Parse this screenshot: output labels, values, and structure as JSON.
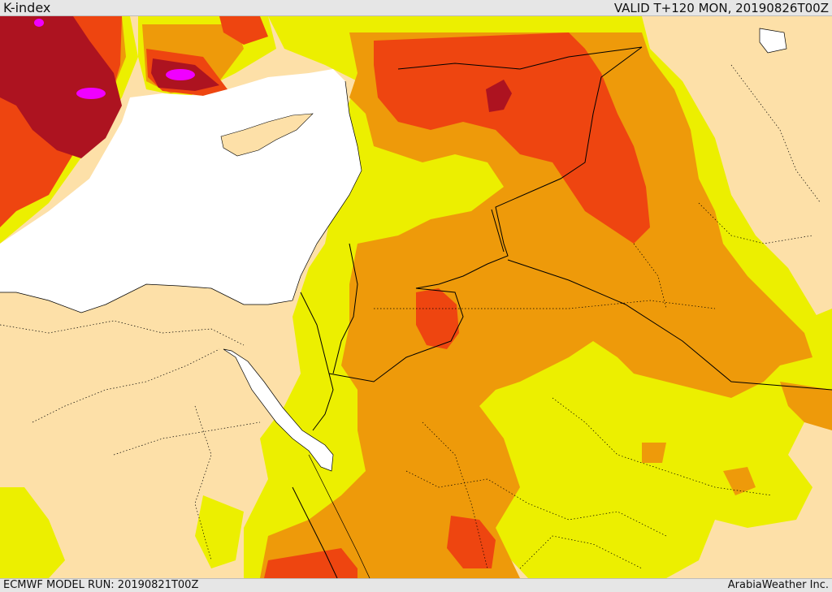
{
  "header": {
    "title": "K-index",
    "valid": "VALID T+120 MON, 20190826T00Z"
  },
  "footer": {
    "model_run": "ECMWF MODEL RUN: 20190821T00Z",
    "credit": "ArabiaWeather Inc."
  },
  "map": {
    "field": "K-index",
    "colors": {
      "land_background": "#fde0a8",
      "sea": "#ffffff",
      "level_yellow": "#ecef00",
      "level_orange": "#ee9a0a",
      "level_red_orange": "#ee4510",
      "level_dark_red": "#ad1320",
      "level_magenta": "#f000ff",
      "boundary_line": "#000000"
    }
  }
}
